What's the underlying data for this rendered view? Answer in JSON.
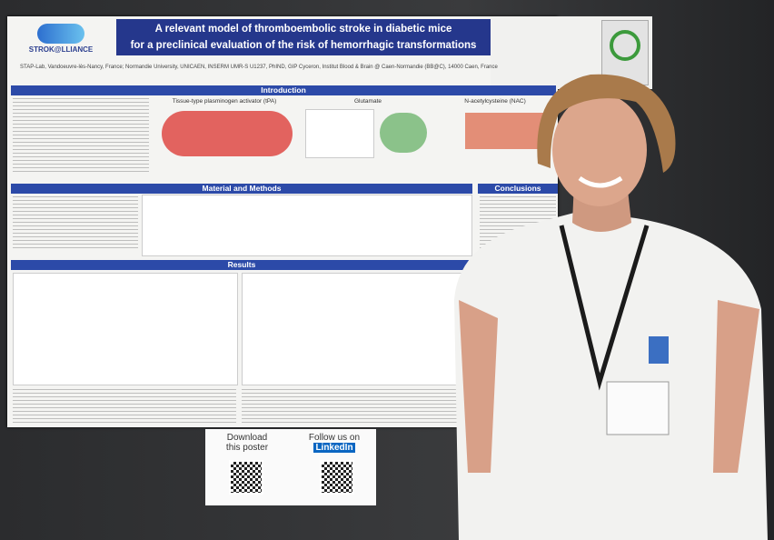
{
  "poster": {
    "title_lines": [
      "A relevant model of thromboembolic stroke in diabetic mice",
      "for a preclinical evaluation of the risk of hemorrhagic transformations"
    ],
    "logo": "STROK@LLIANCE",
    "affiliation": "STAP-Lab, Vandoeuvre-lès-Nancy, France; Normandie University, UNICAEN, INSERM UMR-S U1237, PhIND, GIP Cyceron, Institut Blood & Brain @ Caen-Normandie (BB@C), 14000 Caen, France",
    "sections": [
      "Introduction",
      "Material and Methods",
      "Results",
      "Conclusions"
    ],
    "intro_panels": [
      "Tissue-type plasminogen activator (tPA)",
      "Glutamate",
      "N-acetylcysteine (NAC)"
    ]
  },
  "sign": {
    "left": [
      "Download",
      "this poster"
    ],
    "right": [
      "Follow us on",
      "LinkedIn"
    ]
  }
}
